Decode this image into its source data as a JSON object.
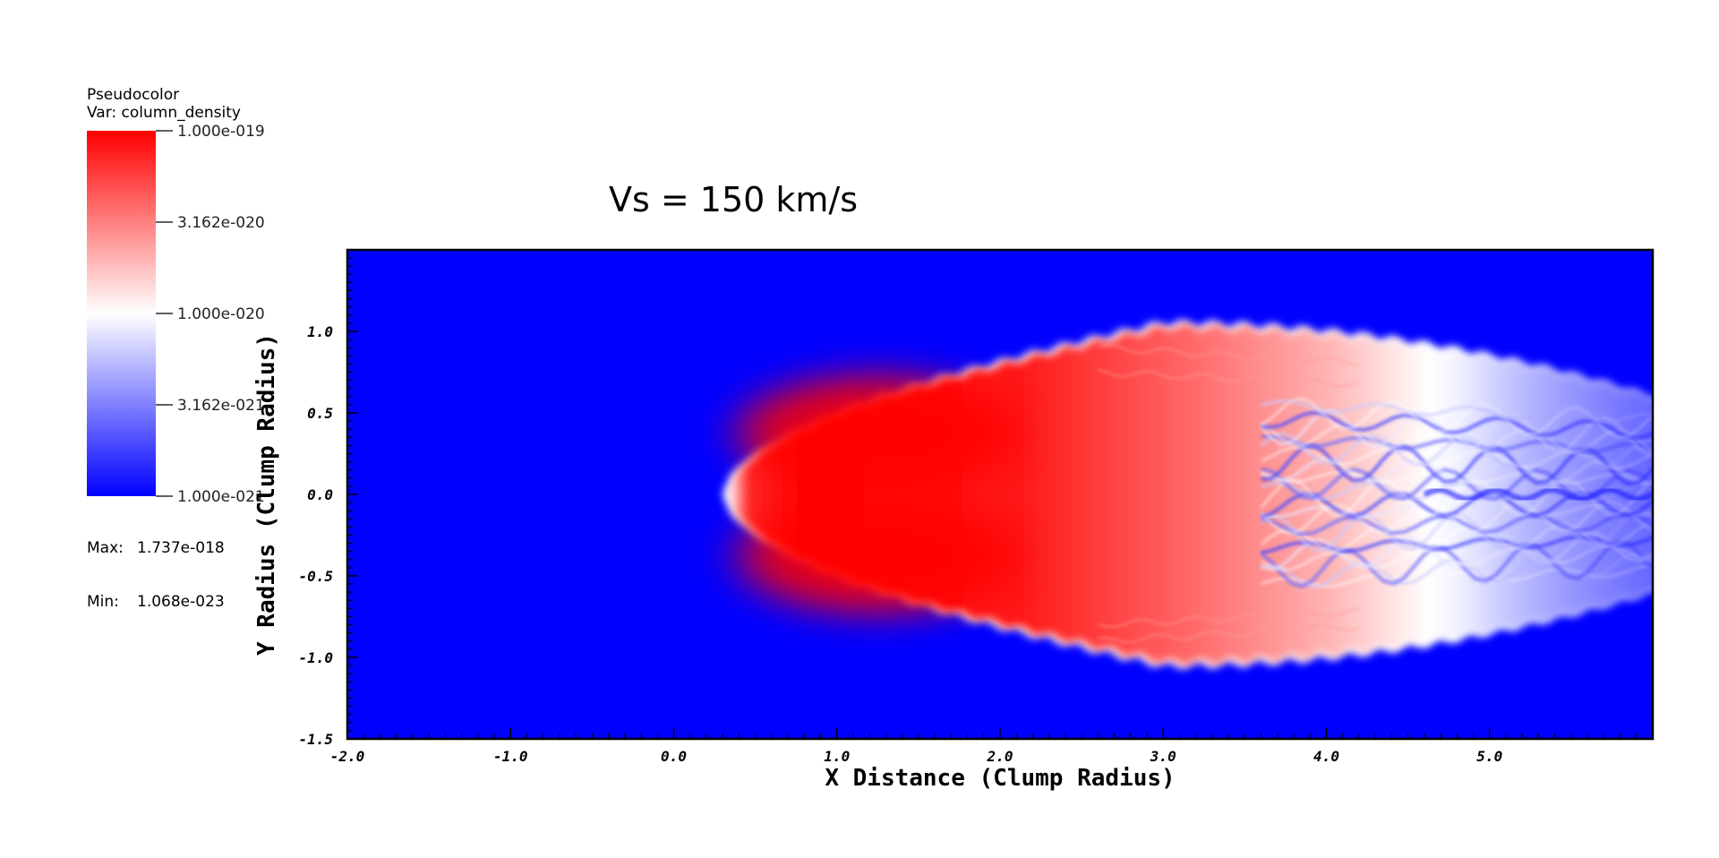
{
  "chart_data": {
    "type": "heatmap",
    "plot_title": "Vs = 150 km/s",
    "xlabel": "X Distance (Clump Radius)",
    "ylabel": "Y Radius (Clump Radius)",
    "xlim": [
      -2.0,
      6.0
    ],
    "ylim": [
      -1.5,
      1.5
    ],
    "x_ticks": [
      {
        "value": -2.0,
        "label": "-2.0"
      },
      {
        "value": -1.0,
        "label": "-1.0"
      },
      {
        "value": 0.0,
        "label": "0.0"
      },
      {
        "value": 1.0,
        "label": "1.0"
      },
      {
        "value": 2.0,
        "label": "2.0"
      },
      {
        "value": 3.0,
        "label": "3.0"
      },
      {
        "value": 4.0,
        "label": "4.0"
      },
      {
        "value": 5.0,
        "label": "5.0"
      }
    ],
    "y_ticks": [
      {
        "value": -1.5,
        "label": "-1.5"
      },
      {
        "value": -1.0,
        "label": "-1.0"
      },
      {
        "value": -0.5,
        "label": "-0.5"
      },
      {
        "value": 0.0,
        "label": "0.0"
      },
      {
        "value": 0.5,
        "label": "0.5"
      },
      {
        "value": 1.0,
        "label": "1.0"
      }
    ],
    "colorscale": {
      "name": "Pseudocolor",
      "variable": "Var: column_density",
      "scale": "log",
      "colors": {
        "low": "#0000ff",
        "mid": "#ffffff",
        "high": "#ff0000"
      },
      "ticks": [
        {
          "value": 1e-19,
          "label": "1.000e-019"
        },
        {
          "value": 3.162e-20,
          "label": "3.162e-020"
        },
        {
          "value": 1e-20,
          "label": "1.000e-020"
        },
        {
          "value": 3.162e-21,
          "label": "3.162e-021"
        },
        {
          "value": 1e-21,
          "label": "1.000e-021"
        }
      ],
      "max_label": "Max:",
      "max_value": "1.737e-018",
      "min_label": "Min:",
      "min_value": "1.068e-023"
    },
    "background_color": "#0000ff",
    "clump": {
      "head_x": 0.3,
      "peak_x": 1.6,
      "peak_y_offset": 0.5,
      "max_half_height": 1.05,
      "tail_end_x": 6.0,
      "tail_half_height": 0.6
    }
  }
}
